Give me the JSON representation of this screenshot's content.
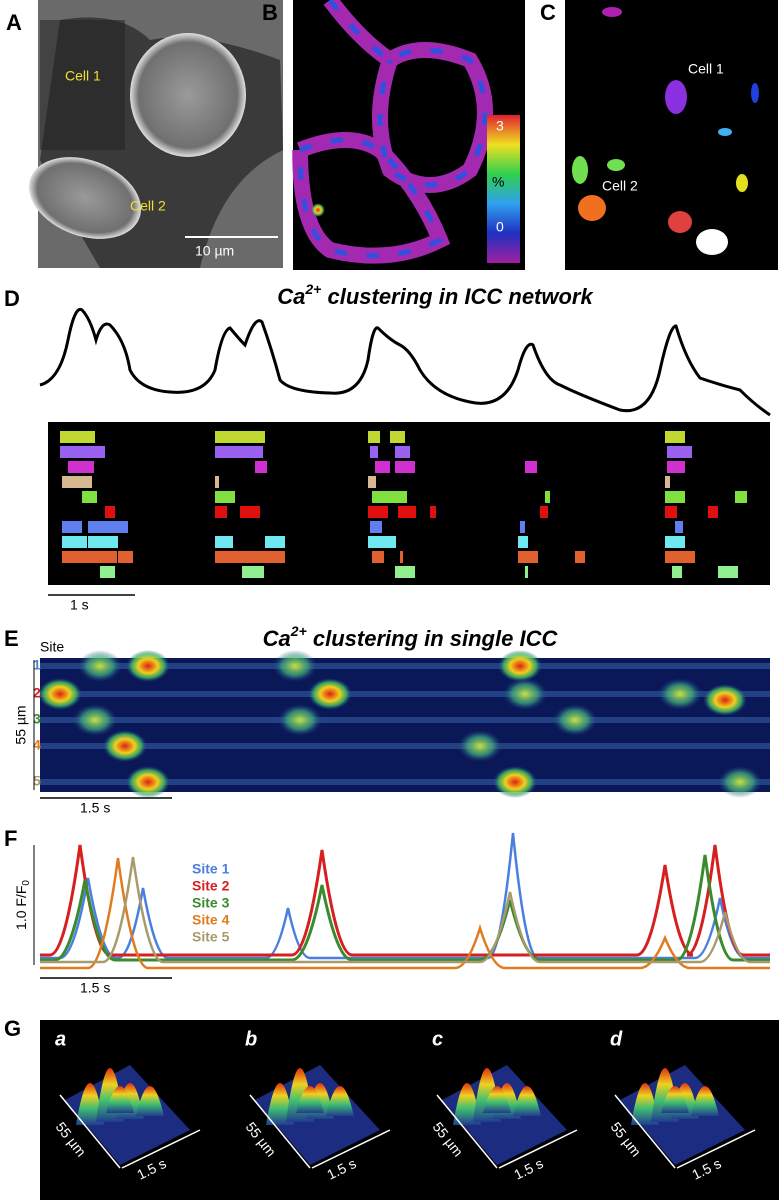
{
  "panels": {
    "A": {
      "letter": "A",
      "cell1": "Cell 1",
      "cell2": "Cell 2",
      "scale": "10 µm"
    },
    "B": {
      "letter": "B",
      "colorbar": {
        "max": "3",
        "unit": "%",
        "min": "0"
      }
    },
    "C": {
      "letter": "C",
      "cell1": "Cell 1",
      "cell2": "Cell 2"
    },
    "D": {
      "letter": "D",
      "title": {
        "base": "Ca",
        "sup": "2+",
        "rest": " clustering in ICC network"
      },
      "scale": "1 s"
    },
    "E": {
      "letter": "E",
      "title": {
        "base": "Ca",
        "sup": "2+",
        "rest": " clustering in single ICC"
      },
      "site_header": "Site",
      "sites": [
        "1",
        "2",
        "3",
        "4",
        "5"
      ],
      "yscale": "55 µm",
      "scale": "1.5 s"
    },
    "F": {
      "letter": "F",
      "legend": [
        "Site 1",
        "Site 2",
        "Site 3",
        "Site 4",
        "Site 5"
      ],
      "yscale": {
        "base": "1.0 F/F",
        "sub": "0"
      },
      "scale": "1.5 s"
    },
    "G": {
      "letter": "G",
      "subpanels": [
        {
          "label": "a",
          "y": "55 µm",
          "x": "1.5 s"
        },
        {
          "label": "b",
          "y": "55 µm",
          "x": "1.5 s"
        },
        {
          "label": "c",
          "y": "55 µm",
          "x": "1.5 s"
        },
        {
          "label": "d",
          "y": "55 µm",
          "x": "1.5 s"
        }
      ]
    }
  }
}
